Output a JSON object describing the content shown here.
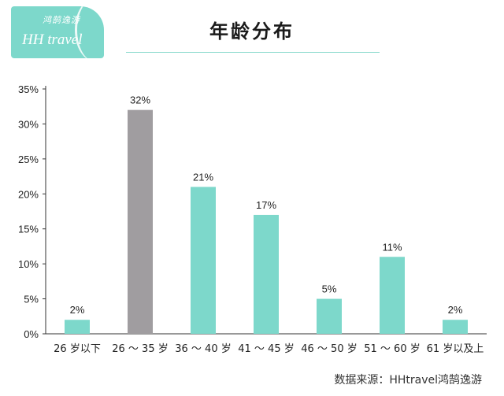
{
  "logo": {
    "text_cn": "鸿鹄逸游",
    "text_en": "HH travel",
    "color": "#7dd8cb"
  },
  "source": "数据来源：HHtravel鸿鹄逸游",
  "chart_data": {
    "type": "bar",
    "title": "年龄分布",
    "categories": [
      "26 岁以下",
      "26 ～ 35 岁",
      "36 ～ 40 岁",
      "41 ～ 45 岁",
      "46 ～ 50 岁",
      "51 ～ 60 岁",
      "61 岁以及上"
    ],
    "values": [
      2,
      32,
      21,
      17,
      5,
      11,
      2
    ],
    "data_labels": [
      "2%",
      "32%",
      "21%",
      "17%",
      "5%",
      "11%",
      "2%"
    ],
    "ylim": [
      0,
      35
    ],
    "yticks": [
      0,
      5,
      10,
      15,
      20,
      25,
      30,
      35
    ],
    "ytick_labels": [
      "0%",
      "5%",
      "10%",
      "15%",
      "20%",
      "25%",
      "30%",
      "35%"
    ],
    "grid": false,
    "bar_color": "#7dd8cb",
    "highlight_index": 1,
    "highlight_color": "#a09da0"
  }
}
